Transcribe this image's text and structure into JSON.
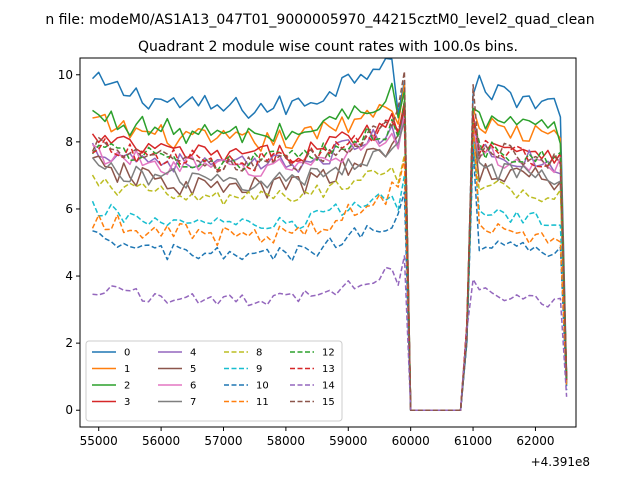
{
  "window": {
    "suptitle": "n file: modeM0/AS1A13_047T01_9000005970_44215cztM0_level2_quad_clean"
  },
  "chart_data": {
    "type": "line",
    "title": "Quadrant 2 module wise count rates with 100.0s bins.",
    "xlabel": "",
    "ylabel": "",
    "x_offset_label": "+4.391e8",
    "xlim": [
      54700,
      62650
    ],
    "ylim": [
      -0.5,
      10.5
    ],
    "x_ticks": [
      55000,
      56000,
      57000,
      58000,
      59000,
      60000,
      61000,
      62000
    ],
    "y_ticks": [
      0,
      2,
      4,
      6,
      8,
      10
    ],
    "grid": false,
    "legend": {
      "placement": "lower-left",
      "columns": 4
    },
    "x_start": 54900,
    "x_step": 100,
    "gap_start": 60000,
    "gap_end": 60800,
    "series": [
      {
        "name": "0",
        "color": "#1f77b4",
        "style": "solid",
        "base": 9.0,
        "bump": 0.8,
        "ind": 1.0,
        "wob": 0.35,
        "peak1": 9.8,
        "peak2": 9.4,
        "end": 1.0
      },
      {
        "name": "1",
        "color": "#ff7f0e",
        "style": "solid",
        "base": 8.0,
        "bump": 0.6,
        "ind": 0.7,
        "wob": 0.35,
        "peak1": 9.7,
        "peak2": 9.0,
        "end": 0.9
      },
      {
        "name": "2",
        "color": "#2ca02c",
        "style": "solid",
        "base": 8.2,
        "bump": 0.6,
        "ind": 0.7,
        "wob": 0.35,
        "peak1": 9.5,
        "peak2": 9.0,
        "end": 0.9
      },
      {
        "name": "3",
        "color": "#d62728",
        "style": "solid",
        "base": 7.6,
        "bump": 0.5,
        "ind": 0.6,
        "wob": 0.3,
        "peak1": 9.2,
        "peak2": 8.8,
        "end": 0.9
      },
      {
        "name": "4",
        "color": "#9467bd",
        "style": "solid",
        "base": 7.3,
        "bump": 0.5,
        "ind": 0.6,
        "wob": 0.3,
        "peak1": 9.0,
        "peak2": 8.7,
        "end": 0.8
      },
      {
        "name": "5",
        "color": "#8c564b",
        "style": "solid",
        "base": 6.6,
        "bump": 0.7,
        "ind": 0.6,
        "wob": 0.35,
        "peak1": 9.0,
        "peak2": 8.6,
        "end": 0.8
      },
      {
        "name": "6",
        "color": "#e377c2",
        "style": "solid",
        "base": 7.2,
        "bump": 0.5,
        "ind": 0.6,
        "wob": 0.3,
        "peak1": 8.8,
        "peak2": 8.4,
        "end": 0.8
      },
      {
        "name": "7",
        "color": "#7f7f7f",
        "style": "solid",
        "base": 6.8,
        "bump": 0.5,
        "ind": 0.6,
        "wob": 0.3,
        "peak1": 8.6,
        "peak2": 8.2,
        "end": 0.8
      },
      {
        "name": "8",
        "color": "#bcbd22",
        "style": "dashed",
        "base": 6.3,
        "bump": 0.5,
        "ind": 0.6,
        "wob": 0.25,
        "peak1": 7.6,
        "peak2": 8.0,
        "end": 0.8
      },
      {
        "name": "9",
        "color": "#17becf",
        "style": "dashed",
        "base": 5.5,
        "bump": 0.5,
        "ind": 0.6,
        "wob": 0.25,
        "peak1": 7.0,
        "peak2": 8.0,
        "end": 0.7
      },
      {
        "name": "10",
        "color": "#1f77b4",
        "style": "dashed",
        "base": 4.6,
        "bump": 0.5,
        "ind": 0.6,
        "wob": 0.25,
        "peak1": 6.5,
        "peak2": 7.8,
        "end": 0.6
      },
      {
        "name": "11",
        "color": "#ff7f0e",
        "style": "dashed",
        "base": 5.2,
        "bump": 0.5,
        "ind": 0.9,
        "wob": 0.3,
        "peak1": 7.5,
        "peak2": 8.6,
        "end": 0.7
      },
      {
        "name": "12",
        "color": "#2ca02c",
        "style": "dashed",
        "base": 7.4,
        "bump": 0.5,
        "ind": 0.6,
        "wob": 0.3,
        "peak1": 9.2,
        "peak2": 8.7,
        "end": 0.9
      },
      {
        "name": "13",
        "color": "#d62728",
        "style": "dashed",
        "base": 7.4,
        "bump": 0.5,
        "ind": 0.6,
        "wob": 0.3,
        "peak1": 9.0,
        "peak2": 8.8,
        "end": 0.9
      },
      {
        "name": "14",
        "color": "#9467bd",
        "style": "dashed",
        "base": 3.3,
        "bump": 0.3,
        "ind": 0.6,
        "wob": 0.2,
        "peak1": 4.6,
        "peak2": 3.9,
        "end": 0.4
      },
      {
        "name": "15",
        "color": "#8c564b",
        "style": "dashed",
        "base": 7.3,
        "bump": 0.6,
        "ind": 0.6,
        "wob": 0.3,
        "peak1": 10.1,
        "peak2": 9.7,
        "end": 1.0
      }
    ]
  }
}
